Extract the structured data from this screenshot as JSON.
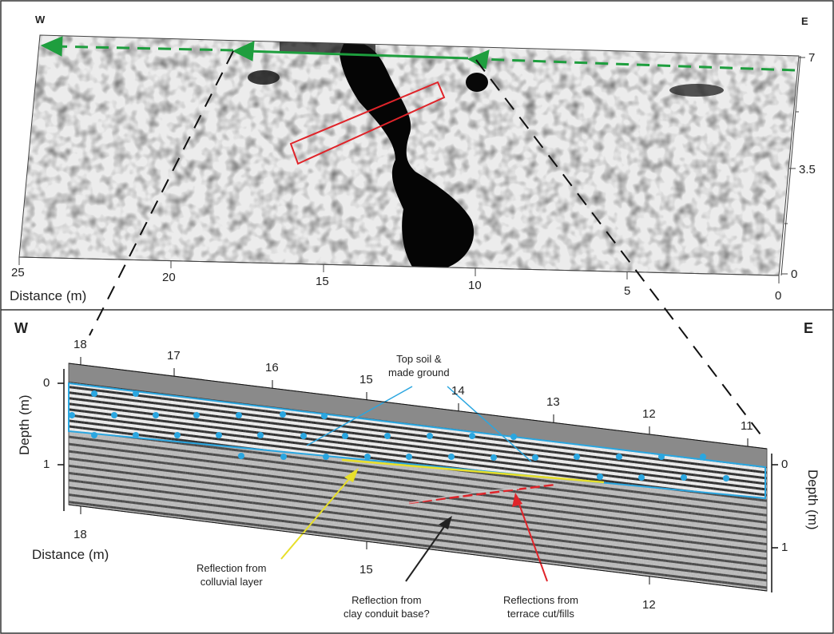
{
  "top_panel": {
    "west_label": "W",
    "east_label": "E",
    "x_axis_title": "Distance (m)",
    "x_ticks": [
      "25",
      "20",
      "15",
      "10",
      "5",
      "0"
    ],
    "y_ticks": [
      "7",
      "3.5",
      "0"
    ],
    "colors": {
      "traverse_arrow": "#1e9e3e",
      "feature_box": "#e0242a"
    }
  },
  "bottom_panel": {
    "west_label": "W",
    "east_label": "E",
    "top_distance_ticks": [
      "18",
      "17",
      "16",
      "15",
      "14",
      "13",
      "12",
      "11"
    ],
    "bottom_distance_ticks": [
      "18",
      "15",
      "12"
    ],
    "distance_title": "Distance (m)",
    "left_depth_title": "Depth (m)",
    "left_depth_ticks": [
      "0",
      "1"
    ],
    "right_depth_title": "Depth (m)",
    "right_depth_ticks": [
      "0",
      "1"
    ],
    "annotations": {
      "topsoil": "Top soil &\nmade ground",
      "colluvial": "Reflection from\ncolluvial layer",
      "clay": "Reflection from\nclay conduit base?",
      "terrace": "Reflections from\nterrace cut/fills"
    },
    "colors": {
      "topsoil": "#2aa6e0",
      "colluvial": "#e7df2a",
      "clay": "#222222",
      "terrace": "#e0242a"
    }
  }
}
